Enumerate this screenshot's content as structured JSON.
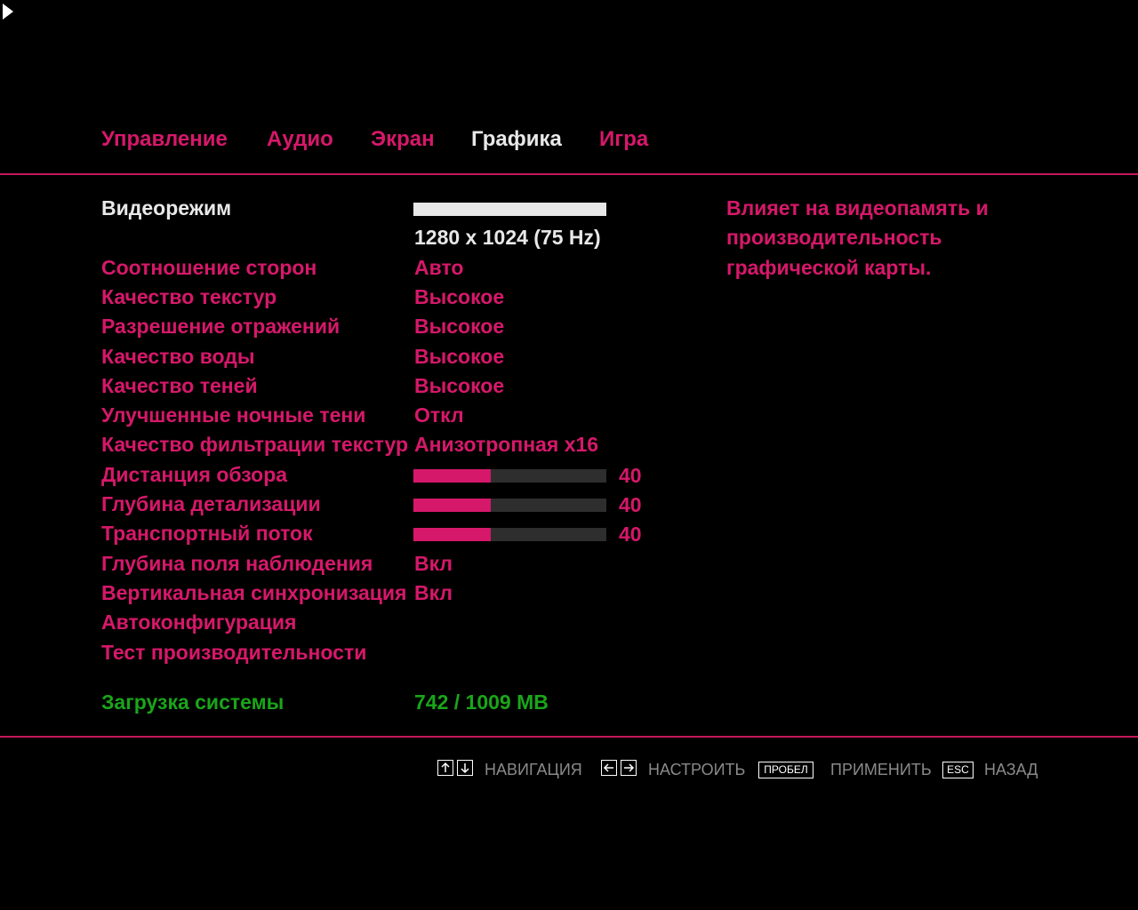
{
  "tabs": {
    "items": [
      "Управление",
      "Аудио",
      "Экран",
      "Графика",
      "Игра"
    ],
    "active": 3
  },
  "settings": {
    "selected": 0,
    "slider_range": [
      0,
      100
    ],
    "rows": [
      {
        "label": "Видеорежим",
        "value": "1280 x 1024 (75 Hz)"
      },
      {
        "label": "Соотношение сторон",
        "value": "Авто"
      },
      {
        "label": "Качество текстур",
        "value": "Высокое"
      },
      {
        "label": "Разрешение отражений",
        "value": "Высокое"
      },
      {
        "label": "Качество воды",
        "value": "Высокое"
      },
      {
        "label": "Качество теней",
        "value": "Высокое"
      },
      {
        "label": "Улучшенные ночные тени",
        "value": "Откл"
      },
      {
        "label": "Качество фильтрации текстур",
        "value": "Анизотропная x16"
      },
      {
        "label": "Дистанция обзора",
        "slider": 40
      },
      {
        "label": "Глубина детализации",
        "slider": 40
      },
      {
        "label": "Транспортный поток",
        "slider": 40
      },
      {
        "label": "Глубина поля наблюдения",
        "value": "Вкл"
      },
      {
        "label": "Вертикальная синхронизация",
        "value": "Вкл"
      },
      {
        "label": "Автоконфигурация"
      },
      {
        "label": "Тест производительности"
      }
    ]
  },
  "description": "Влияет на видеопамять и производительность графической карты.",
  "system_load": {
    "label": "Загрузка системы",
    "value": "742 / 1009 MB"
  },
  "footer": {
    "navigate": "НАВИГАЦИЯ",
    "adjust": "НАСТРОИТЬ",
    "apply_key": "ПРОБЕЛ",
    "apply": "ПРИМЕНИТЬ",
    "back_key": "ESC",
    "back": "НАЗАД"
  }
}
